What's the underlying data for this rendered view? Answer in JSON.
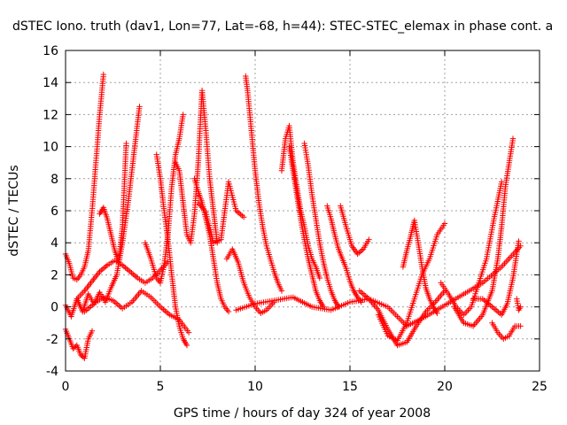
{
  "chart_data": {
    "type": "scatter",
    "title": "dSTEC Iono. truth (dav1, Lon=77, Lat=-68, h=44): STEC-STEC_elemax in phase cont. a",
    "xlabel": "GPS time / hours of day 324 of year 2008",
    "ylabel": "dSTEC  / TECUs",
    "xlim": [
      0,
      25
    ],
    "ylim": [
      -4,
      16
    ],
    "xticks": [
      "0",
      "5",
      "10",
      "15",
      "20",
      "25"
    ],
    "yticks": [
      "-4",
      "-2",
      "0",
      "2",
      "4",
      "6",
      "8",
      "10",
      "12",
      "14",
      "16"
    ],
    "grid": true,
    "marker": "+",
    "color": "#ff0000",
    "series": [
      {
        "x": [
          0.0,
          0.2,
          0.4,
          0.6,
          0.8,
          1.0,
          1.2,
          1.4,
          1.6,
          1.8,
          2.0
        ],
        "y": [
          3.3,
          2.7,
          1.8,
          1.7,
          2.0,
          2.5,
          3.5,
          6.0,
          9.0,
          12.0,
          14.5
        ]
      },
      {
        "x": [
          0.0,
          0.2,
          0.4,
          0.6,
          0.8,
          1.0,
          1.2,
          1.4
        ],
        "y": [
          -1.4,
          -2.0,
          -2.6,
          -2.4,
          -3.0,
          -3.2,
          -2.0,
          -1.5
        ]
      },
      {
        "x": [
          0.0,
          0.3,
          0.6,
          0.9,
          1.2,
          1.5,
          1.8,
          2.1,
          2.4,
          2.7,
          3.0,
          3.3,
          3.6,
          3.9
        ],
        "y": [
          0.1,
          -0.6,
          0.5,
          -0.3,
          0.8,
          0.2,
          0.9,
          0.3,
          1.2,
          2.0,
          4.0,
          6.5,
          9.5,
          12.5
        ]
      },
      {
        "x": [
          1.8,
          2.0,
          2.2,
          2.4,
          2.6,
          2.8,
          3.0,
          3.2
        ],
        "y": [
          5.8,
          6.2,
          5.5,
          4.5,
          3.5,
          2.8,
          5.0,
          10.2
        ]
      },
      {
        "x": [
          0.6,
          1.0,
          1.4,
          1.8,
          2.2,
          2.6,
          3.0,
          3.4,
          3.8,
          4.2,
          4.6,
          5.0,
          5.4
        ],
        "y": [
          0.5,
          1.0,
          1.6,
          2.2,
          2.6,
          2.9,
          2.6,
          2.2,
          1.8,
          1.5,
          1.8,
          2.3,
          2.8
        ]
      },
      {
        "x": [
          1.0,
          1.5,
          2.0,
          2.5,
          3.0,
          3.5,
          4.0,
          4.5,
          5.0,
          5.5,
          6.0,
          6.5
        ],
        "y": [
          -0.3,
          0.2,
          0.6,
          0.4,
          -0.1,
          0.3,
          1.0,
          0.6,
          0.0,
          -0.5,
          -0.8,
          -1.6
        ]
      },
      {
        "x": [
          4.2,
          4.5,
          4.8,
          5.0,
          5.2,
          5.4,
          5.6,
          5.8,
          6.0,
          6.2
        ],
        "y": [
          4.0,
          3.0,
          1.8,
          1.5,
          2.6,
          4.5,
          7.5,
          9.5,
          10.5,
          12.0
        ]
      },
      {
        "x": [
          4.8,
          5.0,
          5.2,
          5.4,
          5.6,
          5.8,
          6.0,
          6.2,
          6.4
        ],
        "y": [
          9.5,
          8.0,
          6.0,
          4.2,
          2.0,
          0.0,
          -1.2,
          -2.0,
          -2.4
        ]
      },
      {
        "x": [
          5.8,
          6.0,
          6.2,
          6.4,
          6.6,
          6.8,
          7.0,
          7.2,
          7.4,
          7.6,
          7.8,
          8.0
        ],
        "y": [
          9.0,
          8.5,
          6.5,
          4.5,
          4.0,
          5.8,
          9.0,
          13.5,
          11.0,
          8.0,
          6.0,
          4.0
        ]
      },
      {
        "x": [
          6.8,
          7.0,
          7.2,
          7.4,
          7.6,
          7.8,
          8.0,
          8.2,
          8.4,
          8.6
        ],
        "y": [
          8.0,
          7.2,
          6.5,
          5.5,
          4.5,
          3.0,
          1.5,
          0.5,
          0.0,
          -0.3
        ]
      },
      {
        "x": [
          7.0,
          7.4,
          7.8,
          8.2,
          8.6,
          9.0,
          9.4
        ],
        "y": [
          6.5,
          5.9,
          4.0,
          4.2,
          7.8,
          6.0,
          5.6
        ]
      },
      {
        "x": [
          8.5,
          8.8,
          9.1,
          9.4,
          9.7,
          10.0,
          10.3,
          10.6,
          11.0
        ],
        "y": [
          3.0,
          3.6,
          2.8,
          1.5,
          0.6,
          0.0,
          -0.4,
          -0.2,
          0.3
        ]
      },
      {
        "x": [
          9.5,
          9.6,
          9.8,
          10.0,
          10.2,
          10.4,
          10.6,
          10.8,
          11.0,
          11.2,
          11.4
        ],
        "y": [
          14.4,
          13.5,
          11.0,
          8.5,
          6.5,
          5.0,
          3.8,
          3.0,
          2.2,
          1.5,
          1.0
        ]
      },
      {
        "x": [
          11.4,
          11.6,
          11.8,
          12.0,
          12.2,
          12.4,
          12.6,
          12.8,
          13.0,
          13.2,
          13.4
        ],
        "y": [
          8.5,
          10.5,
          11.3,
          9.0,
          7.5,
          6.0,
          5.0,
          3.8,
          3.0,
          2.5,
          1.8
        ]
      },
      {
        "x": [
          11.8,
          12.0,
          12.2,
          12.4,
          12.6,
          12.8,
          13.0,
          13.2,
          13.4,
          13.6
        ],
        "y": [
          10.0,
          8.5,
          7.0,
          5.5,
          4.2,
          3.0,
          2.0,
          1.0,
          0.4,
          0.0
        ]
      },
      {
        "x": [
          12.6,
          12.8,
          13.0,
          13.2,
          13.4,
          13.6,
          13.8,
          14.0,
          14.2,
          14.4
        ],
        "y": [
          10.2,
          8.8,
          7.0,
          5.5,
          4.0,
          2.8,
          1.8,
          1.0,
          0.4,
          0.0
        ]
      },
      {
        "x": [
          13.8,
          14.0,
          14.2,
          14.4,
          14.6,
          14.8,
          15.0,
          15.2,
          15.4,
          15.6
        ],
        "y": [
          6.3,
          5.5,
          4.5,
          3.6,
          3.0,
          2.4,
          1.6,
          1.0,
          0.6,
          0.3
        ]
      },
      {
        "x": [
          14.5,
          14.8,
          15.1,
          15.4,
          15.7,
          16.0
        ],
        "y": [
          6.3,
          5.0,
          3.8,
          3.3,
          3.6,
          4.2
        ]
      },
      {
        "x": [
          9.0,
          10.0,
          11.0,
          12.0,
          13.0,
          14.0,
          15.0,
          16.0,
          17.0,
          18.0,
          19.0,
          20.0,
          21.0,
          22.0,
          23.0,
          24.0
        ],
        "y": [
          -0.2,
          0.2,
          0.4,
          0.6,
          0.0,
          -0.2,
          0.3,
          0.5,
          0.0,
          -1.2,
          -0.6,
          0.1,
          0.8,
          1.5,
          2.5,
          3.8
        ]
      },
      {
        "x": [
          15.5,
          16.0,
          16.5,
          17.0,
          17.5,
          18.0,
          18.5,
          19.0,
          19.5,
          20.0
        ],
        "y": [
          1.0,
          0.5,
          -0.2,
          -1.4,
          -2.4,
          -2.2,
          -1.2,
          -0.3,
          0.3,
          1.0
        ]
      },
      {
        "x": [
          16.5,
          17.0,
          17.5,
          18.0,
          18.4,
          18.8,
          19.2,
          19.6,
          20.0
        ],
        "y": [
          -0.5,
          -1.8,
          -2.1,
          -1.0,
          0.5,
          2.0,
          3.0,
          4.5,
          5.2
        ]
      },
      {
        "x": [
          17.8,
          18.0,
          18.2,
          18.4,
          18.6,
          18.8,
          19.0,
          19.2,
          19.4,
          19.6
        ],
        "y": [
          2.5,
          3.5,
          4.4,
          5.4,
          4.0,
          2.5,
          1.2,
          0.5,
          0.0,
          -0.4
        ]
      },
      {
        "x": [
          19.8,
          20.2,
          20.6,
          21.0,
          21.4,
          21.8,
          22.2,
          22.6,
          23.0
        ],
        "y": [
          1.5,
          0.8,
          0.0,
          -0.5,
          0.0,
          1.5,
          3.0,
          5.5,
          7.8
        ]
      },
      {
        "x": [
          20.5,
          21.0,
          21.5,
          22.0,
          22.5,
          22.8,
          23.0,
          23.2,
          23.4,
          23.6
        ],
        "y": [
          0.0,
          -1.0,
          -1.2,
          -0.5,
          1.0,
          3.0,
          5.0,
          7.5,
          9.0,
          10.5
        ]
      },
      {
        "x": [
          22.5,
          22.8,
          23.1,
          23.4,
          23.7,
          24.0
        ],
        "y": [
          -1.0,
          -1.6,
          -2.0,
          -1.8,
          -1.2,
          -1.2
        ]
      },
      {
        "x": [
          21.5,
          22.0,
          22.5,
          23.0,
          23.3,
          23.6,
          23.9
        ],
        "y": [
          0.5,
          0.5,
          0.0,
          -0.5,
          0.2,
          1.8,
          4.1
        ]
      },
      {
        "x": [
          23.8,
          23.9,
          24.0
        ],
        "y": [
          0.5,
          -0.2,
          0.0
        ]
      }
    ]
  }
}
